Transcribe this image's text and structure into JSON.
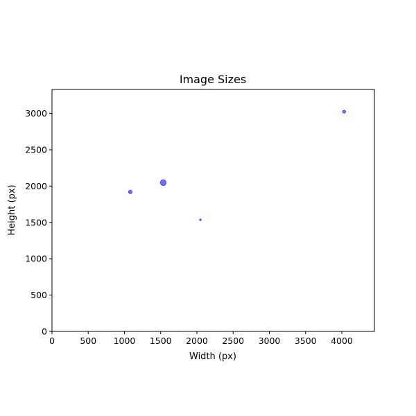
{
  "chart_data": {
    "type": "scatter",
    "title": "Image Sizes",
    "xlabel": "Width (px)",
    "ylabel": "Height (px)",
    "xlim": [
      0,
      4450
    ],
    "ylim": [
      0,
      3330
    ],
    "xticks": [
      0,
      500,
      1000,
      1500,
      2000,
      2500,
      3000,
      3500,
      4000
    ],
    "yticks": [
      0,
      500,
      1000,
      1500,
      2000,
      2500,
      3000
    ],
    "grid": false,
    "point_color": "#0000ff",
    "point_alpha": 0.55,
    "points": [
      {
        "x": 1080,
        "y": 1920,
        "size": 2.5
      },
      {
        "x": 1536,
        "y": 2048,
        "size": 4.2
      },
      {
        "x": 2048,
        "y": 1536,
        "size": 1.2
      },
      {
        "x": 4032,
        "y": 3024,
        "size": 2.2
      }
    ]
  }
}
